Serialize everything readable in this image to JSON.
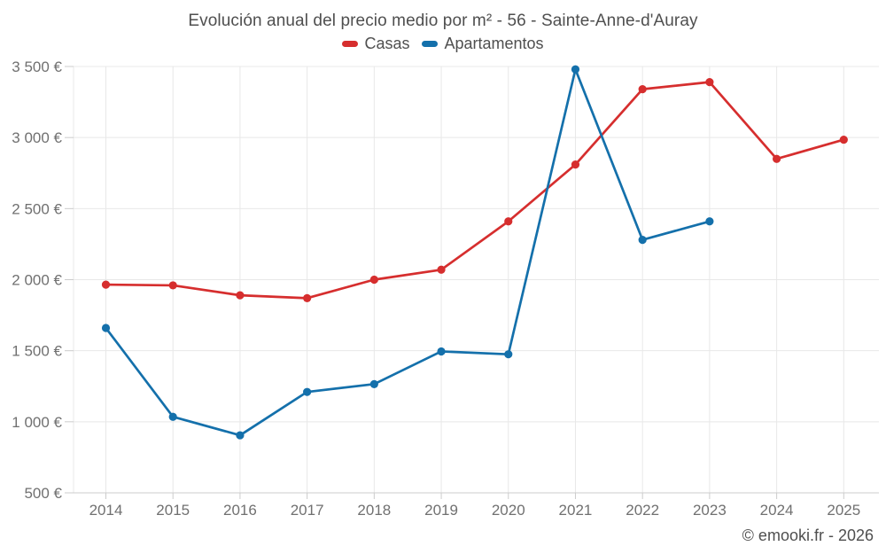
{
  "header": {
    "title": "Evolución anual del precio medio por m² - 56 - Sainte-Anne-d'Auray"
  },
  "footer": {
    "credit": "© emooki.fr - 2026"
  },
  "chart_data": {
    "type": "line",
    "title": "Evolución anual del precio medio por m² - 56 - Sainte-Anne-d'Auray",
    "categories": [
      "2014",
      "2015",
      "2016",
      "2017",
      "2018",
      "2019",
      "2020",
      "2021",
      "2022",
      "2023",
      "2024",
      "2025"
    ],
    "series": [
      {
        "name": "Casas",
        "color": "#d62e2e",
        "values": [
          1965,
          1960,
          1890,
          1870,
          2000,
          2070,
          2410,
          2810,
          3340,
          3390,
          2850,
          2985
        ]
      },
      {
        "name": "Apartamentos",
        "color": "#1470ab",
        "values": [
          1660,
          1035,
          905,
          1210,
          1265,
          1495,
          1475,
          3480,
          2280,
          2410,
          null,
          null
        ]
      }
    ],
    "xlabel": "",
    "ylabel": "",
    "ylim": [
      500,
      3500
    ],
    "y_ticks": [
      {
        "value": 500,
        "label": "500 €"
      },
      {
        "value": 1000,
        "label": "1 000 €"
      },
      {
        "value": 1500,
        "label": "1 500 €"
      },
      {
        "value": 2000,
        "label": "2 000 €"
      },
      {
        "value": 2500,
        "label": "2 500 €"
      },
      {
        "value": 3000,
        "label": "3 000 €"
      },
      {
        "value": 3500,
        "label": "3 500 €"
      }
    ],
    "grid": true,
    "legend_position": "top",
    "grid_color": "#e8e8e8",
    "axis_color": "#cccccc",
    "tick_label_color": "#707070"
  }
}
